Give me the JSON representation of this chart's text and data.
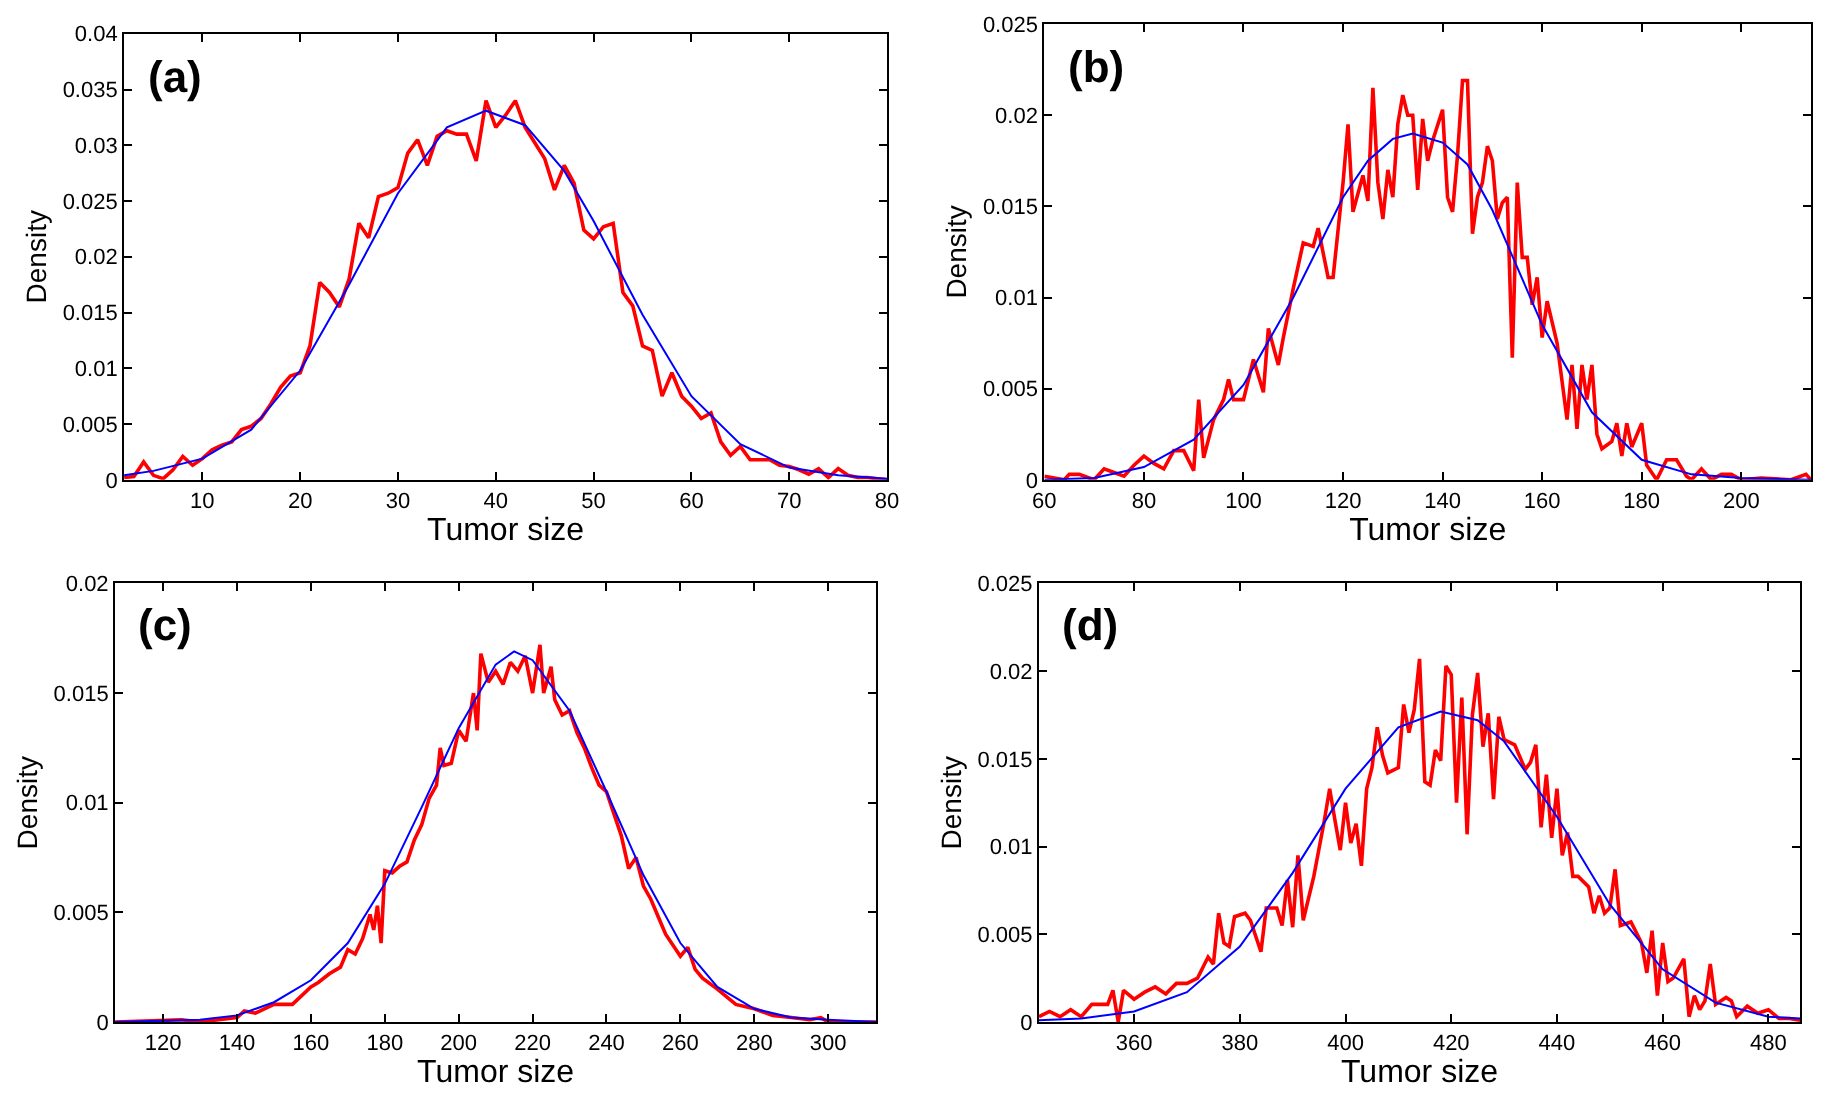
{
  "chart_data": [
    {
      "type": "line",
      "annotations": [
        "(a)"
      ],
      "xlabel": "Tumor size",
      "ylabel": "Density",
      "xlim": [
        2,
        80
      ],
      "xticks": [
        10,
        20,
        30,
        40,
        50,
        60,
        70,
        80
      ],
      "ylim": [
        0,
        0.04
      ],
      "yticks": [
        0,
        0.005,
        0.01,
        0.015,
        0.02,
        0.025,
        0.03,
        0.035,
        0.04
      ],
      "series": [
        {
          "color": "#ff0000",
          "x": [
            2,
            3,
            4,
            5,
            6,
            7,
            8,
            9,
            10,
            11,
            12,
            13,
            14,
            15,
            16,
            17,
            18,
            19,
            20,
            21,
            22,
            23,
            24,
            25,
            26,
            27,
            28,
            29,
            30,
            31,
            32,
            33,
            34,
            35,
            36,
            37,
            38,
            39,
            40,
            41,
            42,
            43,
            44,
            45,
            46,
            47,
            48,
            49,
            50,
            51,
            52,
            53,
            54,
            55,
            56,
            57,
            58,
            59,
            60,
            61,
            62,
            63,
            64,
            65,
            66,
            67,
            68,
            69,
            70,
            71,
            72,
            73,
            74,
            75,
            76,
            77,
            78,
            79,
            80
          ],
          "values": [
            0.0002,
            0.0003,
            0.0016,
            0.0004,
            0.0001,
            0.0009,
            0.0021,
            0.0013,
            0.0019,
            0.0027,
            0.0031,
            0.0034,
            0.0045,
            0.0048,
            0.0055,
            0.0068,
            0.0083,
            0.0093,
            0.0096,
            0.012,
            0.0177,
            0.0168,
            0.0155,
            0.018,
            0.023,
            0.0217,
            0.0254,
            0.0257,
            0.0262,
            0.0293,
            0.0305,
            0.0282,
            0.0308,
            0.0313,
            0.031,
            0.031,
            0.0286,
            0.034,
            0.0316,
            0.0327,
            0.034,
            0.0316,
            0.0302,
            0.0288,
            0.026,
            0.0282,
            0.0266,
            0.0224,
            0.0216,
            0.0227,
            0.023,
            0.0168,
            0.0156,
            0.012,
            0.0116,
            0.0075,
            0.0096,
            0.0075,
            0.0066,
            0.0055,
            0.006,
            0.0034,
            0.0022,
            0.003,
            0.0018,
            0.0018,
            0.0018,
            0.0013,
            0.0012,
            0.0009,
            0.0005,
            0.001,
            0.0002,
            0.001,
            0.0004,
            0.0002,
            0.0002,
            0.0001,
            0
          ]
        },
        {
          "color": "#0000ff",
          "x": [
            2,
            5,
            10,
            15,
            20,
            25,
            30,
            35,
            39,
            43,
            47,
            50,
            55,
            60,
            65,
            70,
            75,
            80
          ],
          "values": [
            0.0004,
            0.0008,
            0.0019,
            0.0045,
            0.0098,
            0.0175,
            0.0257,
            0.0316,
            0.0331,
            0.0318,
            0.0277,
            0.0232,
            0.0148,
            0.0075,
            0.0032,
            0.0011,
            0.0004,
            0.0001
          ]
        }
      ]
    },
    {
      "type": "line",
      "annotations": [
        "(b)"
      ],
      "xlabel": "Tumor size",
      "ylabel": "Density",
      "xlim": [
        60,
        214
      ],
      "xticks": [
        60,
        80,
        100,
        120,
        140,
        160,
        180,
        200
      ],
      "ylim": [
        0,
        0.025
      ],
      "yticks": [
        0,
        0.005,
        0.01,
        0.015,
        0.02,
        0.025
      ],
      "series": [
        {
          "color": "#ff0000",
          "x": [
            60,
            64,
            65,
            67,
            70,
            72,
            74,
            76,
            78,
            80,
            82,
            84,
            86,
            88,
            90,
            91,
            92,
            94,
            96,
            97,
            98,
            100,
            102,
            104,
            105,
            107,
            108,
            110,
            112,
            114,
            115,
            117,
            118,
            120,
            121,
            122,
            124,
            125,
            126,
            127,
            128,
            129,
            130,
            131,
            132,
            133,
            134,
            135,
            136,
            137,
            138,
            140,
            141,
            142,
            143,
            144,
            145,
            146,
            147,
            148,
            149,
            150,
            151,
            152,
            153,
            154,
            155,
            156,
            157,
            158,
            159,
            160,
            161,
            163,
            165,
            166,
            167,
            168,
            169,
            170,
            171,
            172,
            174,
            175,
            176,
            177,
            178,
            180,
            181,
            183,
            185,
            187,
            189,
            190,
            192,
            194,
            196,
            198,
            200,
            204,
            210,
            213,
            214
          ],
          "values": [
            0.0002,
            0,
            0.0003,
            0.0003,
            0,
            0.0006,
            0.0004,
            0.0002,
            0.0008,
            0.0013,
            0.0009,
            0.0006,
            0.0016,
            0.0016,
            0.0005,
            0.0044,
            0.0012,
            0.0033,
            0.0044,
            0.0055,
            0.0044,
            0.0044,
            0.0066,
            0.0048,
            0.0083,
            0.0063,
            0.0078,
            0.0105,
            0.013,
            0.0128,
            0.0138,
            0.0111,
            0.0111,
            0.0163,
            0.0195,
            0.0147,
            0.0167,
            0.0153,
            0.0215,
            0.0163,
            0.0143,
            0.017,
            0.0155,
            0.0195,
            0.0211,
            0.02,
            0.02,
            0.0159,
            0.0198,
            0.0175,
            0.0186,
            0.0203,
            0.0155,
            0.0147,
            0.0178,
            0.0219,
            0.0219,
            0.0135,
            0.0155,
            0.0163,
            0.0183,
            0.0175,
            0.0143,
            0.0152,
            0.0155,
            0.0067,
            0.0163,
            0.0122,
            0.0122,
            0.0096,
            0.0111,
            0.0078,
            0.0098,
            0.0075,
            0.0033,
            0.0063,
            0.0028,
            0.0063,
            0.0044,
            0.0063,
            0.0025,
            0.0017,
            0.0021,
            0.0031,
            0.0013,
            0.0031,
            0.0018,
            0.0031,
            0.0008,
            0,
            0.0011,
            0.0011,
            0.0002,
            0,
            0.0006,
            0,
            0.0003,
            0.0003,
            0,
            0.0001,
            0,
            0.0003,
            0
          ]
        },
        {
          "color": "#0000ff",
          "x": [
            60,
            70,
            80,
            90,
            100,
            110,
            120,
            125,
            130,
            134,
            140,
            145,
            150,
            160,
            170,
            180,
            190,
            200,
            214
          ],
          "values": [
            0,
            0.0001,
            0.0007,
            0.0022,
            0.0052,
            0.01,
            0.0155,
            0.0175,
            0.0187,
            0.019,
            0.0185,
            0.0173,
            0.0148,
            0.0085,
            0.0037,
            0.0011,
            0.0003,
            0.0001,
            0
          ]
        }
      ]
    },
    {
      "type": "line",
      "annotations": [
        "(c)"
      ],
      "xlabel": "Tumor size",
      "ylabel": "Density",
      "xlim": [
        107,
        313
      ],
      "xticks": [
        120,
        140,
        160,
        180,
        200,
        220,
        240,
        260,
        280,
        300
      ],
      "ylim": [
        0,
        0.02
      ],
      "yticks": [
        0,
        0.005,
        0.01,
        0.015,
        0.02
      ],
      "series": [
        {
          "color": "#ff0000",
          "x": [
            107,
            125,
            130,
            135,
            140,
            142,
            145,
            150,
            155,
            160,
            162,
            165,
            168,
            170,
            172,
            174,
            176,
            177,
            178,
            179,
            180,
            182,
            184,
            186,
            188,
            190,
            192,
            194,
            195,
            196,
            198,
            200,
            202,
            204,
            205,
            206,
            208,
            210,
            212,
            214,
            216,
            218,
            220,
            222,
            223,
            225,
            226,
            228,
            230,
            232,
            234,
            236,
            238,
            240,
            242,
            244,
            246,
            248,
            250,
            252,
            254,
            256,
            258,
            260,
            262,
            264,
            266,
            270,
            275,
            280,
            285,
            290,
            295,
            298,
            300,
            313
          ],
          "values": [
            0,
            0.0001,
            0,
            0.0001,
            0.0002,
            0.0005,
            0.0004,
            0.0008,
            0.0008,
            0.0016,
            0.0018,
            0.0022,
            0.0025,
            0.0033,
            0.0031,
            0.0038,
            0.0049,
            0.0042,
            0.0053,
            0.0036,
            0.0069,
            0.0068,
            0.0071,
            0.0073,
            0.0083,
            0.009,
            0.0102,
            0.0108,
            0.0125,
            0.0117,
            0.0118,
            0.0133,
            0.0128,
            0.015,
            0.0133,
            0.0168,
            0.0155,
            0.016,
            0.0154,
            0.0164,
            0.016,
            0.0167,
            0.015,
            0.0172,
            0.015,
            0.0162,
            0.0147,
            0.014,
            0.0142,
            0.0132,
            0.0125,
            0.0116,
            0.0108,
            0.0105,
            0.0095,
            0.0085,
            0.007,
            0.0075,
            0.0062,
            0.0056,
            0.0048,
            0.004,
            0.0035,
            0.003,
            0.0034,
            0.0024,
            0.002,
            0.0015,
            0.0008,
            0.0006,
            0.0003,
            0.0002,
            0.0001,
            0.0002,
            0,
            0
          ]
        },
        {
          "color": "#0000ff",
          "x": [
            107,
            130,
            140,
            150,
            160,
            170,
            180,
            190,
            200,
            210,
            215,
            220,
            230,
            240,
            250,
            260,
            270,
            280,
            290,
            300,
            313
          ],
          "values": [
            0,
            0.0001,
            0.0003,
            0.0009,
            0.0019,
            0.0036,
            0.0063,
            0.0098,
            0.0134,
            0.0163,
            0.0169,
            0.0165,
            0.0142,
            0.0105,
            0.0067,
            0.0036,
            0.0016,
            0.0006,
            0.0002,
            0.0001,
            0
          ]
        }
      ]
    },
    {
      "type": "line",
      "annotations": [
        "(d)"
      ],
      "xlabel": "Tumor size",
      "ylabel": "Density",
      "xlim": [
        342,
        486
      ],
      "xticks": [
        360,
        380,
        400,
        420,
        440,
        460,
        480
      ],
      "ylim": [
        0,
        0.025
      ],
      "yticks": [
        0,
        0.005,
        0.01,
        0.015,
        0.02,
        0.025
      ],
      "series": [
        {
          "color": "#ff0000",
          "x": [
            342,
            344,
            346,
            348,
            350,
            352,
            355,
            356,
            357,
            358,
            360,
            362,
            364,
            366,
            368,
            370,
            372,
            374,
            375,
            376,
            377,
            378,
            379,
            381,
            382,
            384,
            385,
            387,
            388,
            389,
            390,
            391,
            392,
            394,
            396,
            397,
            398,
            399,
            400,
            401,
            402,
            403,
            404,
            405,
            406,
            407,
            408,
            410,
            411,
            412,
            413,
            414,
            415,
            416,
            417,
            418,
            419,
            420,
            421,
            422,
            423,
            424,
            425,
            426,
            427,
            428,
            429,
            430,
            432,
            434,
            435,
            436,
            437,
            438,
            439,
            440,
            441,
            442,
            443,
            444,
            446,
            447,
            448,
            449,
            450,
            451,
            452,
            454,
            456,
            457,
            458,
            459,
            460,
            461,
            462,
            464,
            465,
            466,
            467,
            468,
            469,
            470,
            472,
            473,
            474,
            476,
            478,
            480,
            482,
            484,
            486
          ],
          "values": [
            0.0003,
            0.0006,
            0.0003,
            0.0007,
            0.0003,
            0.001,
            0.001,
            0.0018,
            0,
            0.0018,
            0.0013,
            0.0017,
            0.002,
            0.0016,
            0.0022,
            0.0022,
            0.0025,
            0.0037,
            0.0033,
            0.0062,
            0.0045,
            0.0043,
            0.006,
            0.0062,
            0.0058,
            0.004,
            0.0065,
            0.0065,
            0.0055,
            0.0081,
            0.0054,
            0.0095,
            0.0058,
            0.0083,
            0.0115,
            0.0133,
            0.0115,
            0.0098,
            0.0125,
            0.0102,
            0.0113,
            0.0089,
            0.0133,
            0.0145,
            0.0168,
            0.0152,
            0.0142,
            0.0145,
            0.0181,
            0.0165,
            0.0178,
            0.0207,
            0.0137,
            0.0135,
            0.0155,
            0.0149,
            0.0203,
            0.0198,
            0.0125,
            0.0185,
            0.0107,
            0.0175,
            0.0199,
            0.0157,
            0.0176,
            0.0127,
            0.0174,
            0.0161,
            0.0158,
            0.0144,
            0.0148,
            0.0158,
            0.0111,
            0.0141,
            0.0105,
            0.0133,
            0.0095,
            0.0108,
            0.0083,
            0.0083,
            0.0077,
            0.0062,
            0.0072,
            0.0062,
            0.0065,
            0.0087,
            0.0055,
            0.0057,
            0.0045,
            0.0028,
            0.0052,
            0.0015,
            0.0045,
            0.0023,
            0.0025,
            0.0036,
            0.0003,
            0.0015,
            0.0007,
            0.0012,
            0.0033,
            0.001,
            0.0014,
            0.0012,
            0.0003,
            0.0009,
            0.0005,
            0.0007,
            0.0002,
            0.0002,
            0.0001
          ]
        },
        {
          "color": "#0000ff",
          "x": [
            342,
            350,
            360,
            370,
            380,
            390,
            400,
            410,
            418,
            425,
            430,
            440,
            450,
            460,
            470,
            480,
            486
          ],
          "values": [
            0.0001,
            0.0002,
            0.0006,
            0.0017,
            0.0043,
            0.0085,
            0.0133,
            0.0168,
            0.0177,
            0.0172,
            0.016,
            0.0117,
            0.0067,
            0.003,
            0.0011,
            0.0003,
            0.0002
          ]
        }
      ]
    }
  ]
}
